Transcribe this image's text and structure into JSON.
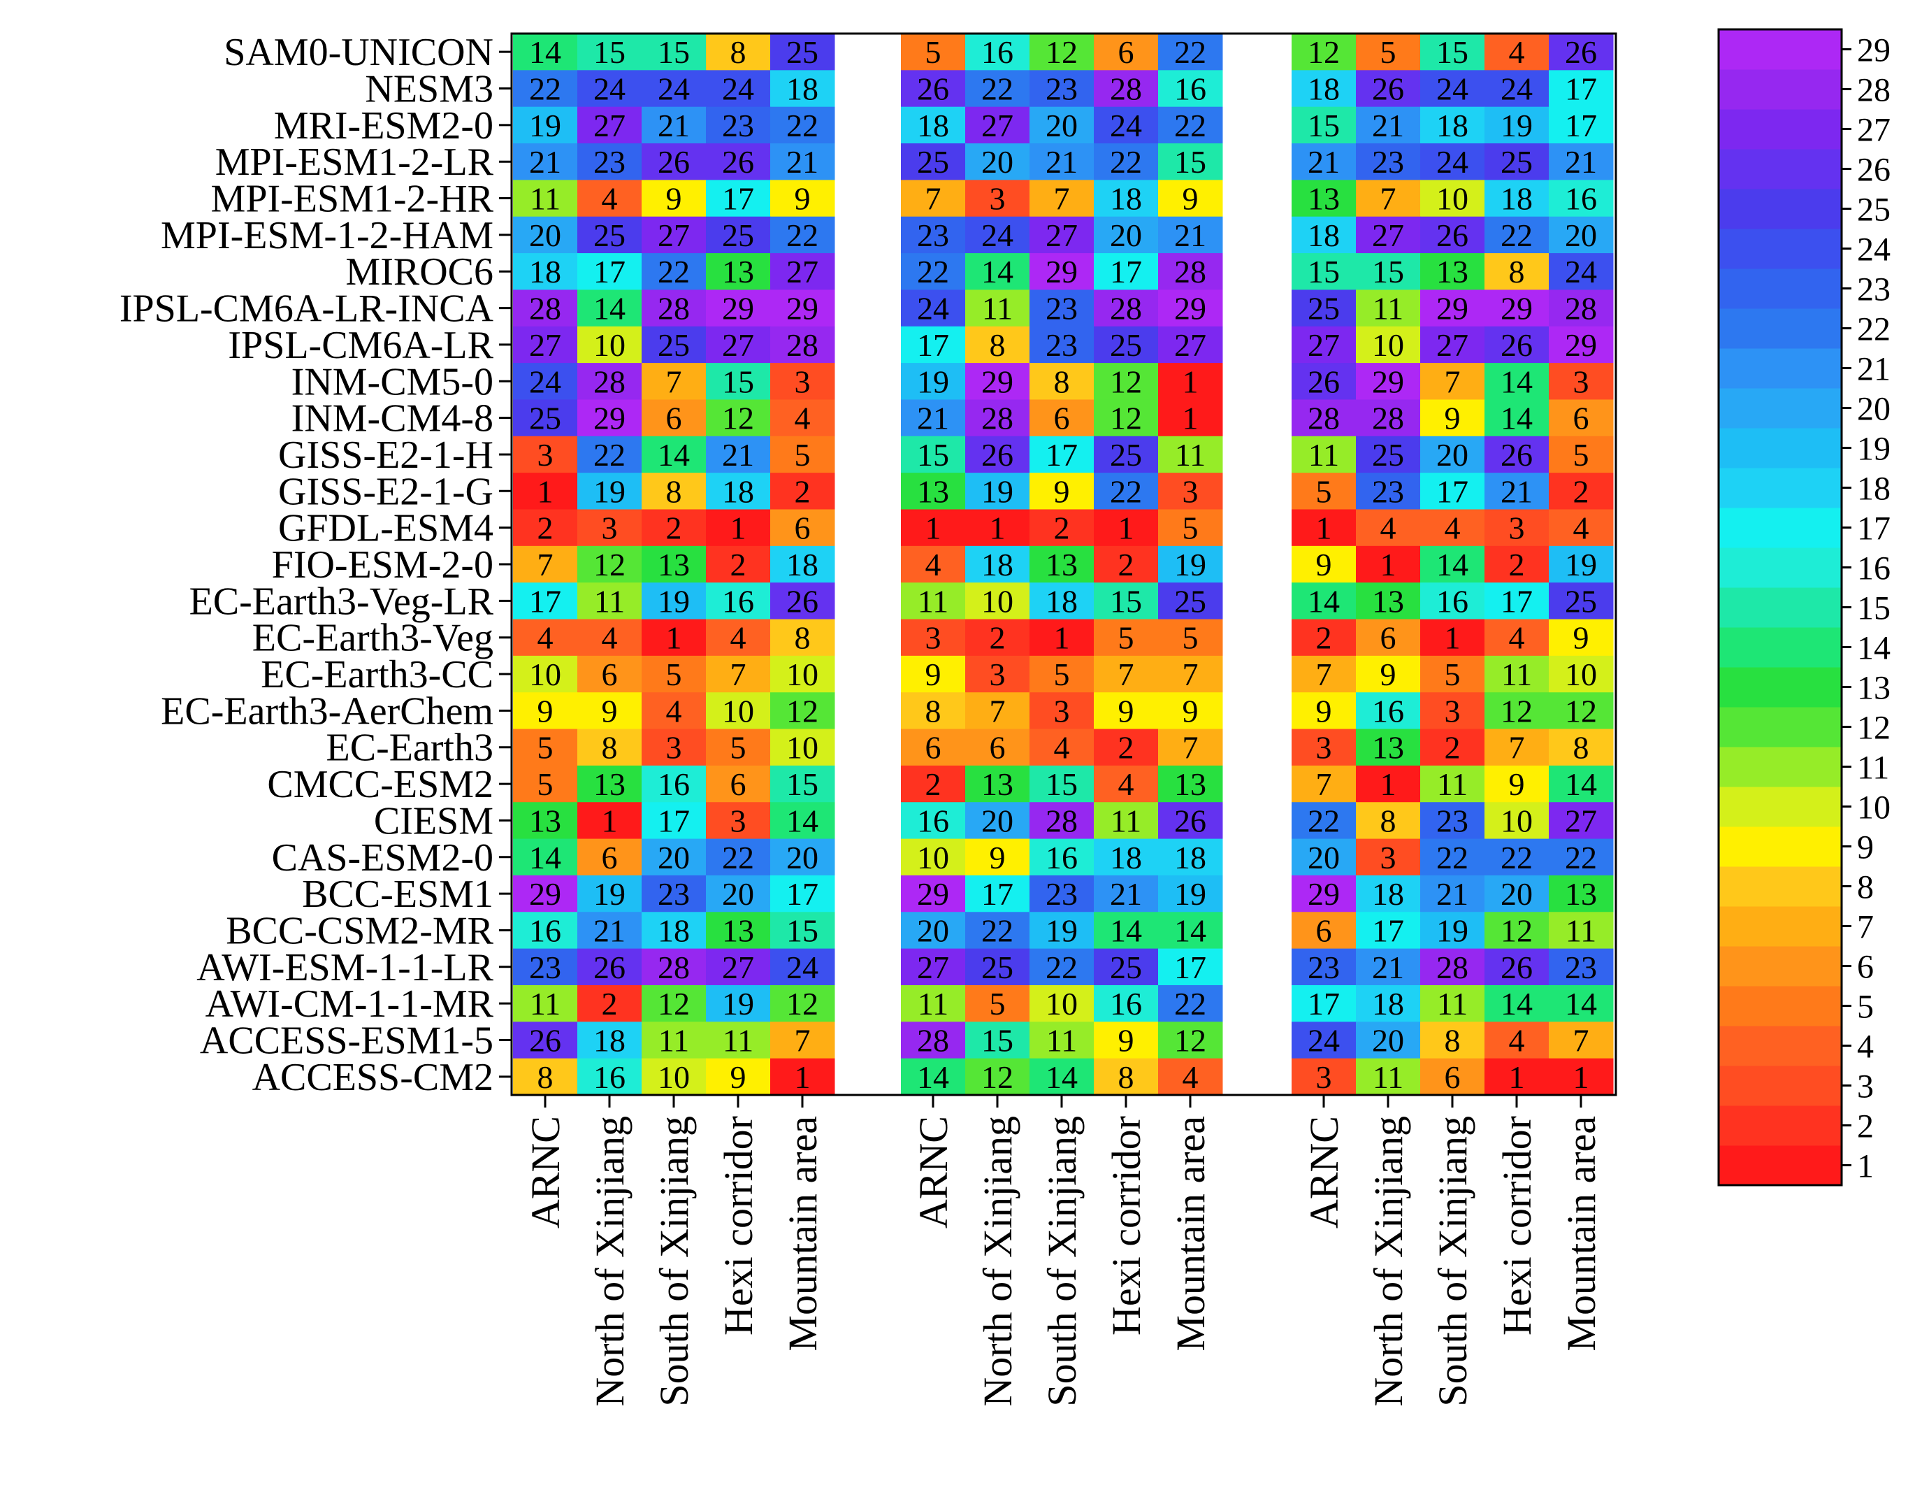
{
  "chart_data": {
    "type": "heatmap",
    "title": "",
    "models": [
      "SAM0-UNICON",
      "NESM3",
      "MRI-ESM2-0",
      "MPI-ESM1-2-LR",
      "MPI-ESM1-2-HR",
      "MPI-ESM-1-2-HAM",
      "MIROC6",
      "IPSL-CM6A-LR-INCA",
      "IPSL-CM6A-LR",
      "INM-CM5-0",
      "INM-CM4-8",
      "GISS-E2-1-H",
      "GISS-E2-1-G",
      "GFDL-ESM4",
      "FIO-ESM-2-0",
      "EC-Earth3-Veg-LR",
      "EC-Earth3-Veg",
      "EC-Earth3-CC",
      "EC-Earth3-AerChem",
      "EC-Earth3",
      "CMCC-ESM2",
      "CIESM",
      "CAS-ESM2-0",
      "BCC-ESM1",
      "BCC-CSM2-MR",
      "AWI-ESM-1-1-LR",
      "AWI-CM-1-1-MR",
      "ACCESS-ESM1-5",
      "ACCESS-CM2"
    ],
    "regions": [
      "ARNC",
      "North of Xinjiang",
      "South of Xinjiang",
      "Hexi corridor",
      "Mountain area"
    ],
    "panels": [
      {
        "values": [
          [
            14,
            15,
            15,
            8,
            25
          ],
          [
            22,
            24,
            24,
            24,
            18
          ],
          [
            19,
            27,
            21,
            23,
            22
          ],
          [
            21,
            23,
            26,
            26,
            21
          ],
          [
            11,
            4,
            9,
            17,
            9
          ],
          [
            20,
            25,
            27,
            25,
            22
          ],
          [
            18,
            17,
            22,
            13,
            27
          ],
          [
            28,
            14,
            28,
            29,
            29
          ],
          [
            27,
            10,
            25,
            27,
            28
          ],
          [
            24,
            28,
            7,
            15,
            3
          ],
          [
            25,
            29,
            6,
            12,
            4
          ],
          [
            3,
            22,
            14,
            21,
            5
          ],
          [
            1,
            19,
            8,
            18,
            2
          ],
          [
            2,
            3,
            2,
            1,
            6
          ],
          [
            7,
            12,
            13,
            2,
            18
          ],
          [
            17,
            11,
            19,
            16,
            26
          ],
          [
            4,
            4,
            1,
            4,
            8
          ],
          [
            10,
            6,
            5,
            7,
            10
          ],
          [
            9,
            9,
            4,
            10,
            12
          ],
          [
            5,
            8,
            3,
            5,
            10
          ],
          [
            5,
            13,
            16,
            6,
            15
          ],
          [
            13,
            1,
            17,
            3,
            14
          ],
          [
            14,
            6,
            20,
            22,
            20
          ],
          [
            29,
            19,
            23,
            20,
            17
          ],
          [
            16,
            21,
            18,
            13,
            15
          ],
          [
            23,
            26,
            28,
            27,
            24
          ],
          [
            11,
            2,
            12,
            19,
            12
          ],
          [
            26,
            18,
            11,
            11,
            7
          ],
          [
            8,
            16,
            10,
            9,
            1
          ]
        ]
      },
      {
        "values": [
          [
            5,
            16,
            12,
            6,
            22
          ],
          [
            26,
            22,
            23,
            28,
            16
          ],
          [
            18,
            27,
            20,
            24,
            22
          ],
          [
            25,
            20,
            21,
            22,
            15
          ],
          [
            7,
            3,
            7,
            18,
            9
          ],
          [
            23,
            24,
            27,
            20,
            21
          ],
          [
            22,
            14,
            29,
            17,
            28
          ],
          [
            24,
            11,
            23,
            28,
            29
          ],
          [
            17,
            8,
            23,
            25,
            27
          ],
          [
            19,
            29,
            8,
            12,
            1
          ],
          [
            21,
            28,
            6,
            12,
            1
          ],
          [
            15,
            26,
            17,
            25,
            11
          ],
          [
            13,
            19,
            9,
            22,
            3
          ],
          [
            1,
            1,
            2,
            1,
            5
          ],
          [
            4,
            18,
            13,
            2,
            19
          ],
          [
            11,
            10,
            18,
            15,
            25
          ],
          [
            3,
            2,
            1,
            5,
            5
          ],
          [
            9,
            3,
            5,
            7,
            7
          ],
          [
            8,
            7,
            3,
            9,
            9
          ],
          [
            6,
            6,
            4,
            2,
            7
          ],
          [
            2,
            13,
            15,
            4,
            13
          ],
          [
            16,
            20,
            28,
            11,
            26
          ],
          [
            10,
            9,
            16,
            18,
            18
          ],
          [
            29,
            17,
            23,
            21,
            19
          ],
          [
            20,
            22,
            19,
            14,
            14
          ],
          [
            27,
            25,
            22,
            25,
            17
          ],
          [
            11,
            5,
            10,
            16,
            22
          ],
          [
            28,
            15,
            11,
            9,
            12
          ],
          [
            14,
            12,
            14,
            8,
            4
          ]
        ]
      },
      {
        "values": [
          [
            12,
            5,
            15,
            4,
            26
          ],
          [
            18,
            26,
            24,
            24,
            17
          ],
          [
            15,
            21,
            18,
            19,
            17
          ],
          [
            21,
            23,
            24,
            25,
            21
          ],
          [
            13,
            7,
            10,
            18,
            16
          ],
          [
            18,
            27,
            26,
            22,
            20
          ],
          [
            15,
            15,
            13,
            8,
            24
          ],
          [
            25,
            11,
            29,
            29,
            28
          ],
          [
            27,
            10,
            27,
            26,
            29
          ],
          [
            26,
            29,
            7,
            14,
            3
          ],
          [
            28,
            28,
            9,
            14,
            6
          ],
          [
            11,
            25,
            20,
            26,
            5
          ],
          [
            5,
            23,
            17,
            21,
            2
          ],
          [
            1,
            4,
            4,
            3,
            4
          ],
          [
            9,
            1,
            14,
            2,
            19
          ],
          [
            14,
            13,
            16,
            17,
            25
          ],
          [
            2,
            6,
            1,
            4,
            9
          ],
          [
            7,
            9,
            5,
            11,
            10
          ],
          [
            9,
            16,
            3,
            12,
            12
          ],
          [
            3,
            13,
            2,
            7,
            8
          ],
          [
            7,
            1,
            11,
            9,
            14
          ],
          [
            22,
            8,
            23,
            10,
            27
          ],
          [
            20,
            3,
            22,
            22,
            22
          ],
          [
            29,
            18,
            21,
            20,
            13
          ],
          [
            6,
            17,
            19,
            12,
            11
          ],
          [
            23,
            21,
            28,
            26,
            23
          ],
          [
            17,
            18,
            11,
            14,
            14
          ],
          [
            24,
            20,
            8,
            4,
            7
          ],
          [
            3,
            11,
            6,
            1,
            1
          ]
        ]
      }
    ],
    "colorbar": {
      "min": 1,
      "max": 29,
      "ticks": [
        29,
        28,
        27,
        26,
        25,
        24,
        23,
        22,
        21,
        20,
        19,
        18,
        17,
        16,
        15,
        14,
        13,
        12,
        11,
        10,
        9,
        8,
        7,
        6,
        5,
        4,
        3,
        2,
        1
      ],
      "colors": {
        "1": "#ff1a1a",
        "2": "#ff3320",
        "3": "#ff4d22",
        "4": "#ff6122",
        "5": "#ff7a1a",
        "6": "#ff941a",
        "7": "#ffae14",
        "8": "#ffc81a",
        "9": "#fff000",
        "10": "#d4f01a",
        "11": "#96ec28",
        "12": "#55e636",
        "13": "#28e040",
        "14": "#1ee675",
        "15": "#1ee8a8",
        "16": "#1eedd6",
        "17": "#14f0f0",
        "18": "#1ed2f5",
        "19": "#1ebef5",
        "20": "#28a8f5",
        "21": "#2d92f5",
        "22": "#2d78f0",
        "23": "#3264ef",
        "24": "#3c50ef",
        "25": "#4b3ced",
        "26": "#6432f0",
        "27": "#7d28f0",
        "28": "#9628f0",
        "29": "#ad28f5"
      }
    }
  }
}
